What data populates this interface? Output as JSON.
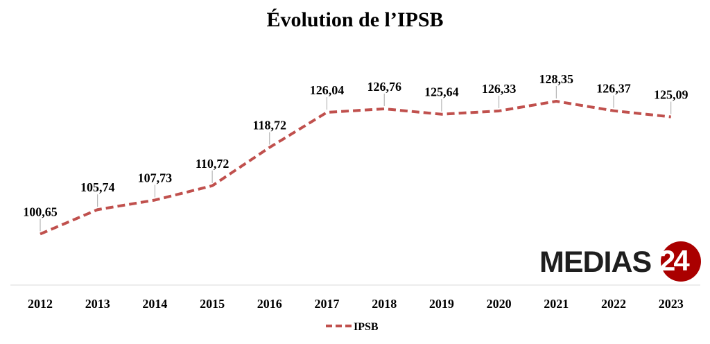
{
  "chart_data": {
    "type": "line",
    "title": "Évolution de l’IPSB",
    "categories": [
      "2012",
      "2013",
      "2014",
      "2015",
      "2016",
      "2017",
      "2018",
      "2019",
      "2020",
      "2021",
      "2022",
      "2023"
    ],
    "series": [
      {
        "name": "IPSB",
        "values": [
          100.65,
          105.74,
          107.73,
          110.72,
          118.72,
          126.04,
          126.76,
          125.64,
          126.33,
          128.35,
          126.37,
          125.09
        ],
        "labels": [
          "100,65",
          "105,74",
          "107,73",
          "110,72",
          "118,72",
          "126,04",
          "126,76",
          "125,64",
          "126,33",
          "128,35",
          "126,37",
          "125,09"
        ],
        "color": "#c0504d",
        "style": "dashed"
      }
    ],
    "ylim": [
      90,
      130
    ],
    "y_axis_visible": false,
    "grid": false,
    "legend": "bottom"
  },
  "logo": {
    "text": "MEDIAS",
    "number": "24"
  }
}
